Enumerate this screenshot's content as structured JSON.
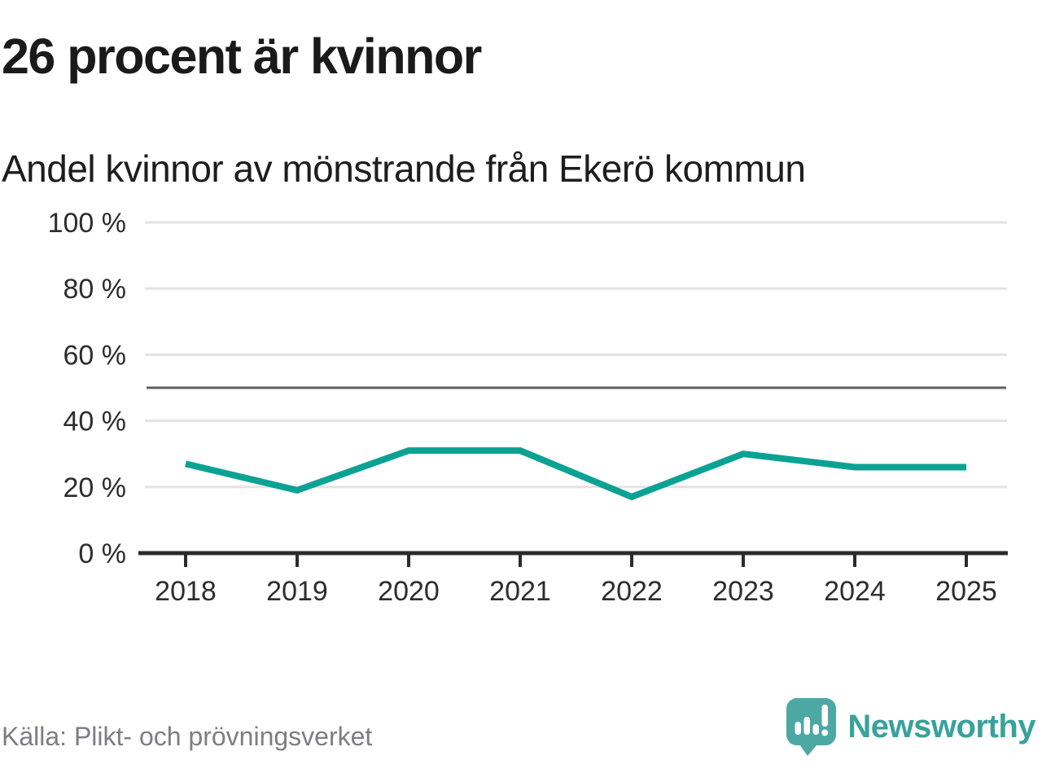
{
  "header": {
    "title": "26 procent är kvinnor",
    "subtitle": "Andel kvinnor av mönstrande från Ekerö kommun"
  },
  "footer": {
    "source": "Källa: Plikt- och prövningsverket",
    "brand": "Newsworthy"
  },
  "colors": {
    "line": "#0ba294",
    "grid": "#e3e3e3",
    "reference_line": "#5f5f68",
    "axis": "#2b2b2b",
    "tick_text": "#2d2d2d",
    "source_text": "#7d7d85",
    "brand_text": "#38a29b",
    "logo_background": "#4ca8a2"
  },
  "chart_data": {
    "type": "line",
    "x": [
      "2018",
      "2019",
      "2020",
      "2021",
      "2022",
      "2023",
      "2024",
      "2025"
    ],
    "series": [
      {
        "name": "Andel kvinnor av mönstrande",
        "values": [
          27,
          19,
          31,
          31,
          17,
          30,
          26,
          26
        ]
      }
    ],
    "unit": "%",
    "title": "26 procent är kvinnor",
    "subtitle": "Andel kvinnor av mönstrande från Ekerö kommun",
    "xlabel": "",
    "ylabel": "",
    "ylim": [
      0,
      100
    ],
    "yticks": [
      {
        "value": 0,
        "label": "0 %"
      },
      {
        "value": 20,
        "label": "20 %"
      },
      {
        "value": 40,
        "label": "40 %"
      },
      {
        "value": 60,
        "label": "60 %"
      },
      {
        "value": 80,
        "label": "80 %"
      },
      {
        "value": 100,
        "label": "100 %"
      }
    ],
    "reference_line": {
      "value": 50
    },
    "grid": true,
    "legend": "none"
  }
}
